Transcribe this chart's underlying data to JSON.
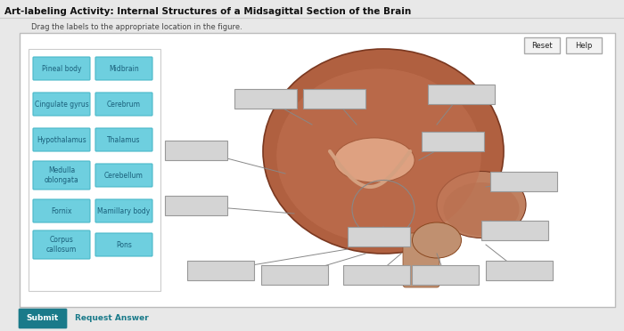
{
  "title": "Art-labeling Activity: Internal Structures of a Midsagittal Section of the Brain",
  "subtitle": "Drag the labels to the appropriate location in the figure.",
  "bg_color": "#e8e8e8",
  "panel_bg": "#ffffff",
  "label_bg": "#6ecfdf",
  "label_text_color": "#1a5f7a",
  "label_border": "#4ab8c8",
  "blank_bg": "#d4d4d4",
  "blank_border": "#999999",
  "labels_left": [
    [
      "Pineal body",
      "Midbrain"
    ],
    [
      "Cingulate gyrus",
      "Cerebrum"
    ],
    [
      "Hypothalamus",
      "Thalamus"
    ],
    [
      "Medulla\noblongata",
      "Cerebellum"
    ],
    [
      "Fornix",
      "Mamillary body"
    ],
    [
      "Corpus\ncallosum",
      "Pons"
    ]
  ],
  "submit_color": "#1a7a8a",
  "submit_text": "Submit",
  "request_text": "Request Answer",
  "reset_text": "Reset",
  "help_text": "Help",
  "figsize": [
    7.0,
    3.72
  ],
  "dpi": 100
}
